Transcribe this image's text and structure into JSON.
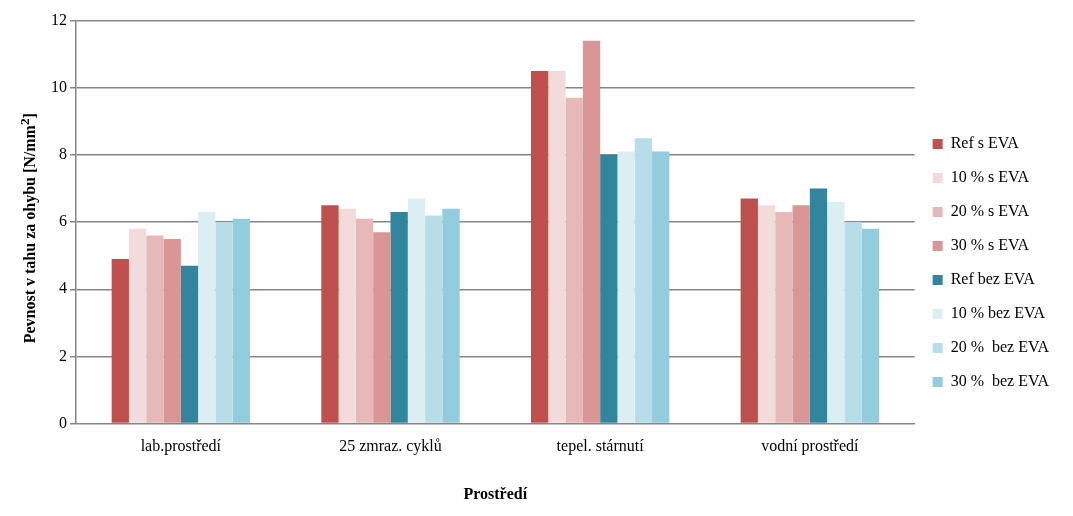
{
  "chart_data": {
    "type": "bar",
    "xlabel": "Prostředí",
    "ylabel": "Pevnost v tahu za ohybu [N/mm$^{2}$]",
    "categories": [
      "lab.prostředí",
      "25 zmraz. cyklů",
      "tepel. stárnutí",
      "vodní prostředí"
    ],
    "series": [
      {
        "name": "Ref s EVA",
        "color": "#c0504d",
        "values": [
          4.9,
          6.5,
          10.5,
          6.7
        ]
      },
      {
        "name": "10 % s EVA",
        "color": "#f2dcdb",
        "values": [
          5.8,
          6.4,
          10.5,
          6.5
        ]
      },
      {
        "name": "20 % s EVA",
        "color": "#e6b9b8",
        "values": [
          5.6,
          6.1,
          9.7,
          6.3
        ]
      },
      {
        "name": "30 % s EVA",
        "color": "#d99694",
        "values": [
          5.5,
          5.7,
          11.4,
          6.5
        ]
      },
      {
        "name": "Ref bez EVA",
        "color": "#31859c",
        "values": [
          4.7,
          6.3,
          8.0,
          7.0
        ]
      },
      {
        "name": "10 % bez EVA",
        "color": "#dbeef4",
        "values": [
          6.3,
          6.7,
          8.1,
          6.6
        ]
      },
      {
        "name": "20 %  bez EVA",
        "color": "#b7dee8",
        "values": [
          6.0,
          6.2,
          8.5,
          6.0
        ]
      },
      {
        "name": "30 %  bez EVA",
        "color": "#93cddd",
        "values": [
          6.1,
          6.4,
          8.1,
          5.8
        ]
      }
    ],
    "ylim": [
      0,
      12
    ],
    "yticks": [
      0,
      2,
      4,
      6,
      8,
      10,
      12
    ],
    "grid": "y",
    "legend": "right"
  }
}
